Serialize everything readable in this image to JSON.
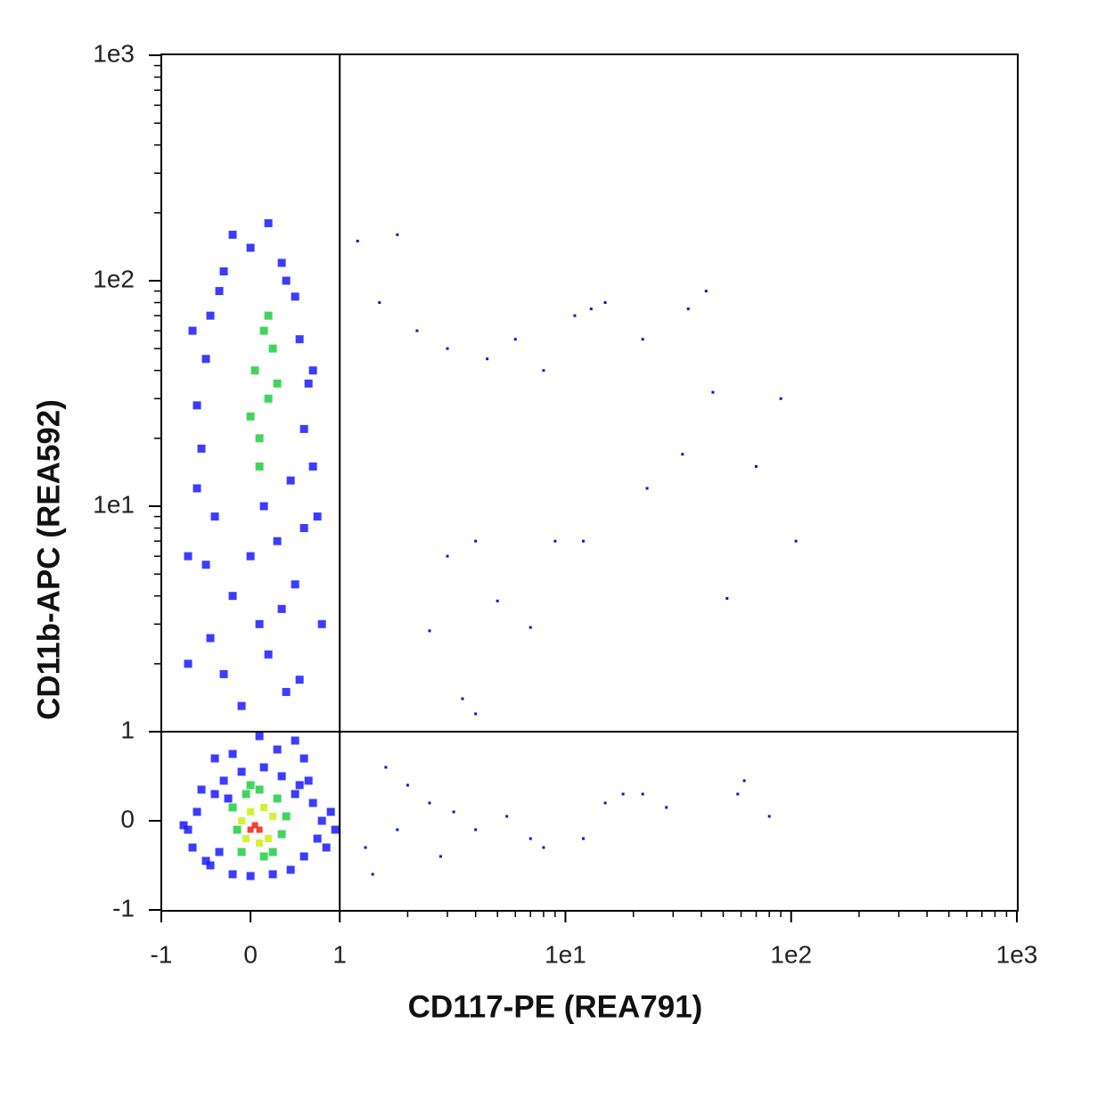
{
  "chart_data": {
    "type": "scatter",
    "xlabel": "CD117-PE (REA791)",
    "ylabel": "CD11b-APC (REA592)",
    "xscale": "biexponential",
    "yscale": "biexponential",
    "xlim": [
      -1,
      1000
    ],
    "ylim": [
      -1,
      1000
    ],
    "xticks": [
      -1,
      0,
      1,
      {
        "value": 10,
        "label": "1e1"
      },
      {
        "value": 100,
        "label": "1e2"
      },
      {
        "value": 1000,
        "label": "1e3"
      }
    ],
    "yticks": [
      -1,
      0,
      1,
      {
        "value": 10,
        "label": "1e1"
      },
      {
        "value": 100,
        "label": "1e2"
      },
      {
        "value": 1000,
        "label": "1e3"
      }
    ],
    "minor_ticks": [
      2,
      3,
      4,
      5,
      6,
      7,
      8,
      9,
      20,
      30,
      40,
      50,
      60,
      70,
      80,
      90,
      200,
      300,
      400,
      500,
      600,
      700,
      800,
      900
    ],
    "gate": {
      "x": 1,
      "y": 1
    },
    "series": [
      {
        "color": "#1a1aff",
        "marker_size": 9,
        "x": [
          -0.7,
          -0.6,
          -0.65,
          -0.5,
          -0.4,
          -0.45,
          -0.3,
          -0.2,
          -0.1,
          0.0,
          0.15,
          0.25,
          0.35,
          0.45,
          0.55,
          0.6,
          0.7,
          0.75,
          0.8,
          0.85,
          0.9,
          0.65,
          -0.55,
          -0.75,
          0.95,
          -0.35,
          0.5,
          -0.25,
          -0.2,
          0.3,
          0.5,
          -0.4,
          0.1,
          0.6,
          -0.1,
          0.4,
          -0.3,
          0.2,
          0.55,
          -0.45,
          0.1,
          0.35,
          -0.2,
          0.5,
          -0.5,
          0.0,
          0.3,
          0.6,
          -0.4,
          0.15,
          -0.6,
          0.45,
          0.7,
          -0.55,
          0.6,
          -0.6,
          0.65,
          -0.5,
          0.55,
          -0.45,
          0.5,
          -0.3,
          0.35,
          0.0,
          -0.2,
          0.2,
          -0.35,
          0.4,
          0.7,
          -0.65,
          0.75,
          -0.7,
          0.8,
          -0.7
        ],
        "y": [
          -0.1,
          0.1,
          -0.3,
          -0.45,
          0.3,
          -0.5,
          0.45,
          -0.6,
          0.55,
          -0.62,
          0.6,
          -0.6,
          0.5,
          -0.55,
          0.4,
          -0.4,
          0.2,
          -0.2,
          0.0,
          -0.3,
          0.1,
          0.45,
          0.35,
          -0.05,
          -0.1,
          -0.35,
          0.3,
          0.25,
          0.75,
          0.8,
          0.9,
          0.7,
          0.95,
          0.7,
          1.3,
          1.5,
          1.8,
          2.2,
          1.7,
          2.6,
          3,
          3.5,
          4,
          4.5,
          5.5,
          6,
          7,
          8,
          9,
          10,
          12,
          13,
          15,
          18,
          22,
          28,
          35,
          45,
          55,
          70,
          85,
          110,
          120,
          140,
          160,
          180,
          90,
          100,
          40,
          60,
          9,
          6,
          3,
          2
        ]
      },
      {
        "color": "#1010e0",
        "marker_size": 3,
        "x": [
          1.2,
          1.8,
          1.5,
          2.2,
          3,
          4.5,
          6,
          8,
          11,
          13,
          15,
          22,
          35,
          42,
          45,
          90,
          33,
          70,
          23,
          105,
          52,
          12,
          9,
          4,
          3,
          5,
          7,
          2.5,
          3.5,
          4,
          1.6,
          2,
          2.5,
          3.2,
          4,
          5.5,
          7,
          8,
          12,
          15,
          18,
          22,
          28,
          58,
          62,
          80,
          1.3,
          1.8,
          1.4,
          2.8
        ],
        "y": [
          150,
          160,
          80,
          60,
          50,
          45,
          55,
          40,
          70,
          75,
          80,
          55,
          75,
          90,
          32,
          30,
          17,
          15,
          12,
          7,
          3.9,
          7,
          7,
          7,
          6,
          3.8,
          2.9,
          2.8,
          1.4,
          1.2,
          0.6,
          0.4,
          0.2,
          0.1,
          -0.1,
          0.05,
          -0.2,
          -0.3,
          -0.2,
          0.2,
          0.3,
          0.3,
          0.15,
          0.3,
          0.45,
          0.05,
          -0.3,
          -0.1,
          -0.6,
          -0.4
        ]
      },
      {
        "color": "#22cc44",
        "marker_size": 9,
        "x": [
          0.1,
          0.2,
          0.05,
          0.25,
          0.15,
          0.0,
          0.3,
          0.1,
          0.2,
          -0.05,
          0.3,
          -0.15,
          0.35,
          -0.1,
          0.25,
          0.0,
          0.4,
          -0.2,
          0.1,
          0.15
        ],
        "y": [
          20,
          30,
          40,
          50,
          60,
          25,
          35,
          15,
          70,
          0.3,
          0.25,
          -0.1,
          -0.15,
          -0.35,
          -0.35,
          0.4,
          0.05,
          0.15,
          0.35,
          -0.4
        ]
      },
      {
        "color": "#ccee11",
        "marker_size": 8,
        "x": [
          0.0,
          0.15,
          -0.05,
          0.2,
          0.1,
          -0.1,
          0.25
        ],
        "y": [
          0.1,
          0.15,
          -0.2,
          -0.2,
          -0.25,
          0.0,
          0.05
        ]
      },
      {
        "color": "#ee2211",
        "marker_size": 7,
        "x": [
          0.05,
          0.1,
          0.0
        ],
        "y": [
          -0.05,
          -0.1,
          -0.1
        ]
      }
    ]
  }
}
